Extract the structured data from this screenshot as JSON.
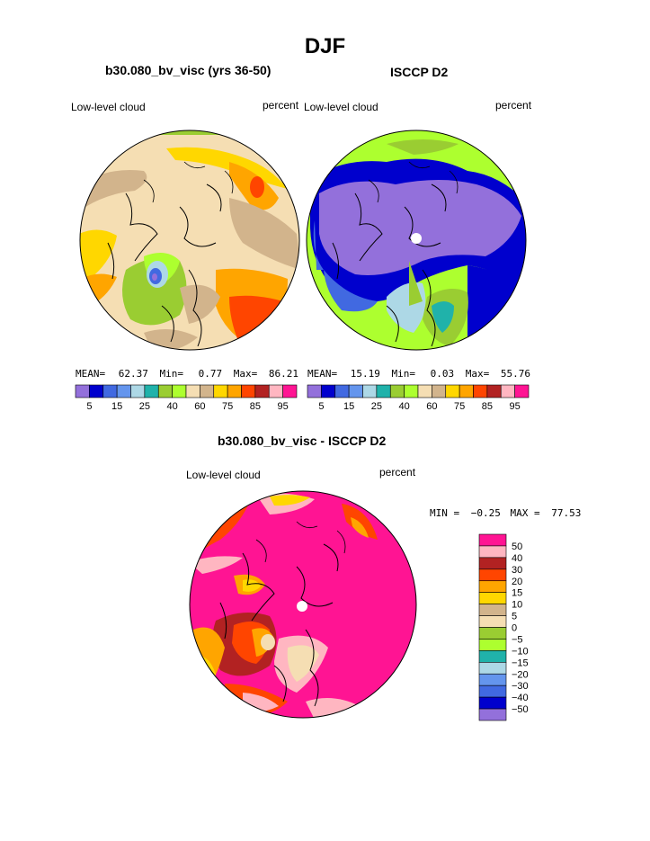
{
  "main_title": "DJF",
  "panel_a": {
    "title": "b30.080_bv_visc (yrs 36-50)",
    "left_label": "Low-level cloud",
    "right_label": "percent",
    "stats": {
      "mean_label": "MEAN=",
      "mean": "62.37",
      "min_label": "Min=",
      "min": "0.77",
      "max_label": "Max=",
      "max": "86.21"
    }
  },
  "panel_b": {
    "title": "ISCCP D2",
    "left_label": "Low-level cloud",
    "right_label": "percent",
    "stats": {
      "mean_label": "MEAN=",
      "mean": "15.19",
      "min_label": "Min=",
      "min": "0.03",
      "max_label": "Max=",
      "max": "55.76"
    }
  },
  "panel_c": {
    "title": "b30.080_bv_visc - ISCCP D2",
    "left_label": "Low-level cloud",
    "right_label": "percent",
    "stats": {
      "min_label": "MIN =",
      "min": "−0.25",
      "max_label": "MAX =",
      "max": "77.53"
    }
  },
  "colorbar_top": {
    "colors": [
      "#9370db",
      "#0000cd",
      "#4169e1",
      "#6495ed",
      "#add8e6",
      "#20b2aa",
      "#9acd32",
      "#adff2f",
      "#f5deb3",
      "#d2b48c",
      "#ffd700",
      "#ffa500",
      "#ff4500",
      "#b22222",
      "#ffb6c1",
      "#ff1493"
    ],
    "labels": [
      "5",
      "15",
      "25",
      "40",
      "60",
      "75",
      "85",
      "95"
    ]
  },
  "colorbar_diff": {
    "colors": [
      "#ff1493",
      "#ffb6c1",
      "#b22222",
      "#ff4500",
      "#ffa500",
      "#ffd700",
      "#d2b48c",
      "#f5deb3",
      "#9acd32",
      "#adff2f",
      "#20b2aa",
      "#add8e6",
      "#6495ed",
      "#4169e1",
      "#0000cd",
      "#9370db"
    ],
    "labels": [
      "50",
      "40",
      "30",
      "20",
      "15",
      "10",
      "5",
      "0",
      "−5",
      "−10",
      "−15",
      "−20",
      "−30",
      "−40",
      "−50"
    ]
  },
  "chart_data": [
    {
      "type": "heatmap",
      "title": "b30.080_bv_visc (yrs 36-50)",
      "projection": "north polar stereographic",
      "field": "Low-level cloud",
      "units": "percent",
      "mean": 62.37,
      "min": 0.77,
      "max": 86.21,
      "levels": [
        5,
        10,
        15,
        20,
        25,
        30,
        40,
        50,
        60,
        65,
        75,
        80,
        85,
        90,
        95
      ]
    },
    {
      "type": "heatmap",
      "title": "ISCCP D2",
      "projection": "north polar stereographic",
      "field": "Low-level cloud",
      "units": "percent",
      "mean": 15.19,
      "min": 0.03,
      "max": 55.76,
      "levels": [
        5,
        10,
        15,
        20,
        25,
        30,
        40,
        50,
        60,
        65,
        75,
        80,
        85,
        90,
        95
      ]
    },
    {
      "type": "heatmap",
      "title": "b30.080_bv_visc - ISCCP D2",
      "projection": "north polar stereographic",
      "field": "Low-level cloud",
      "units": "percent",
      "min": -0.25,
      "max": 77.53,
      "levels": [
        -50,
        -40,
        -30,
        -20,
        -15,
        -10,
        -5,
        0,
        5,
        10,
        15,
        20,
        30,
        40,
        50
      ]
    }
  ]
}
